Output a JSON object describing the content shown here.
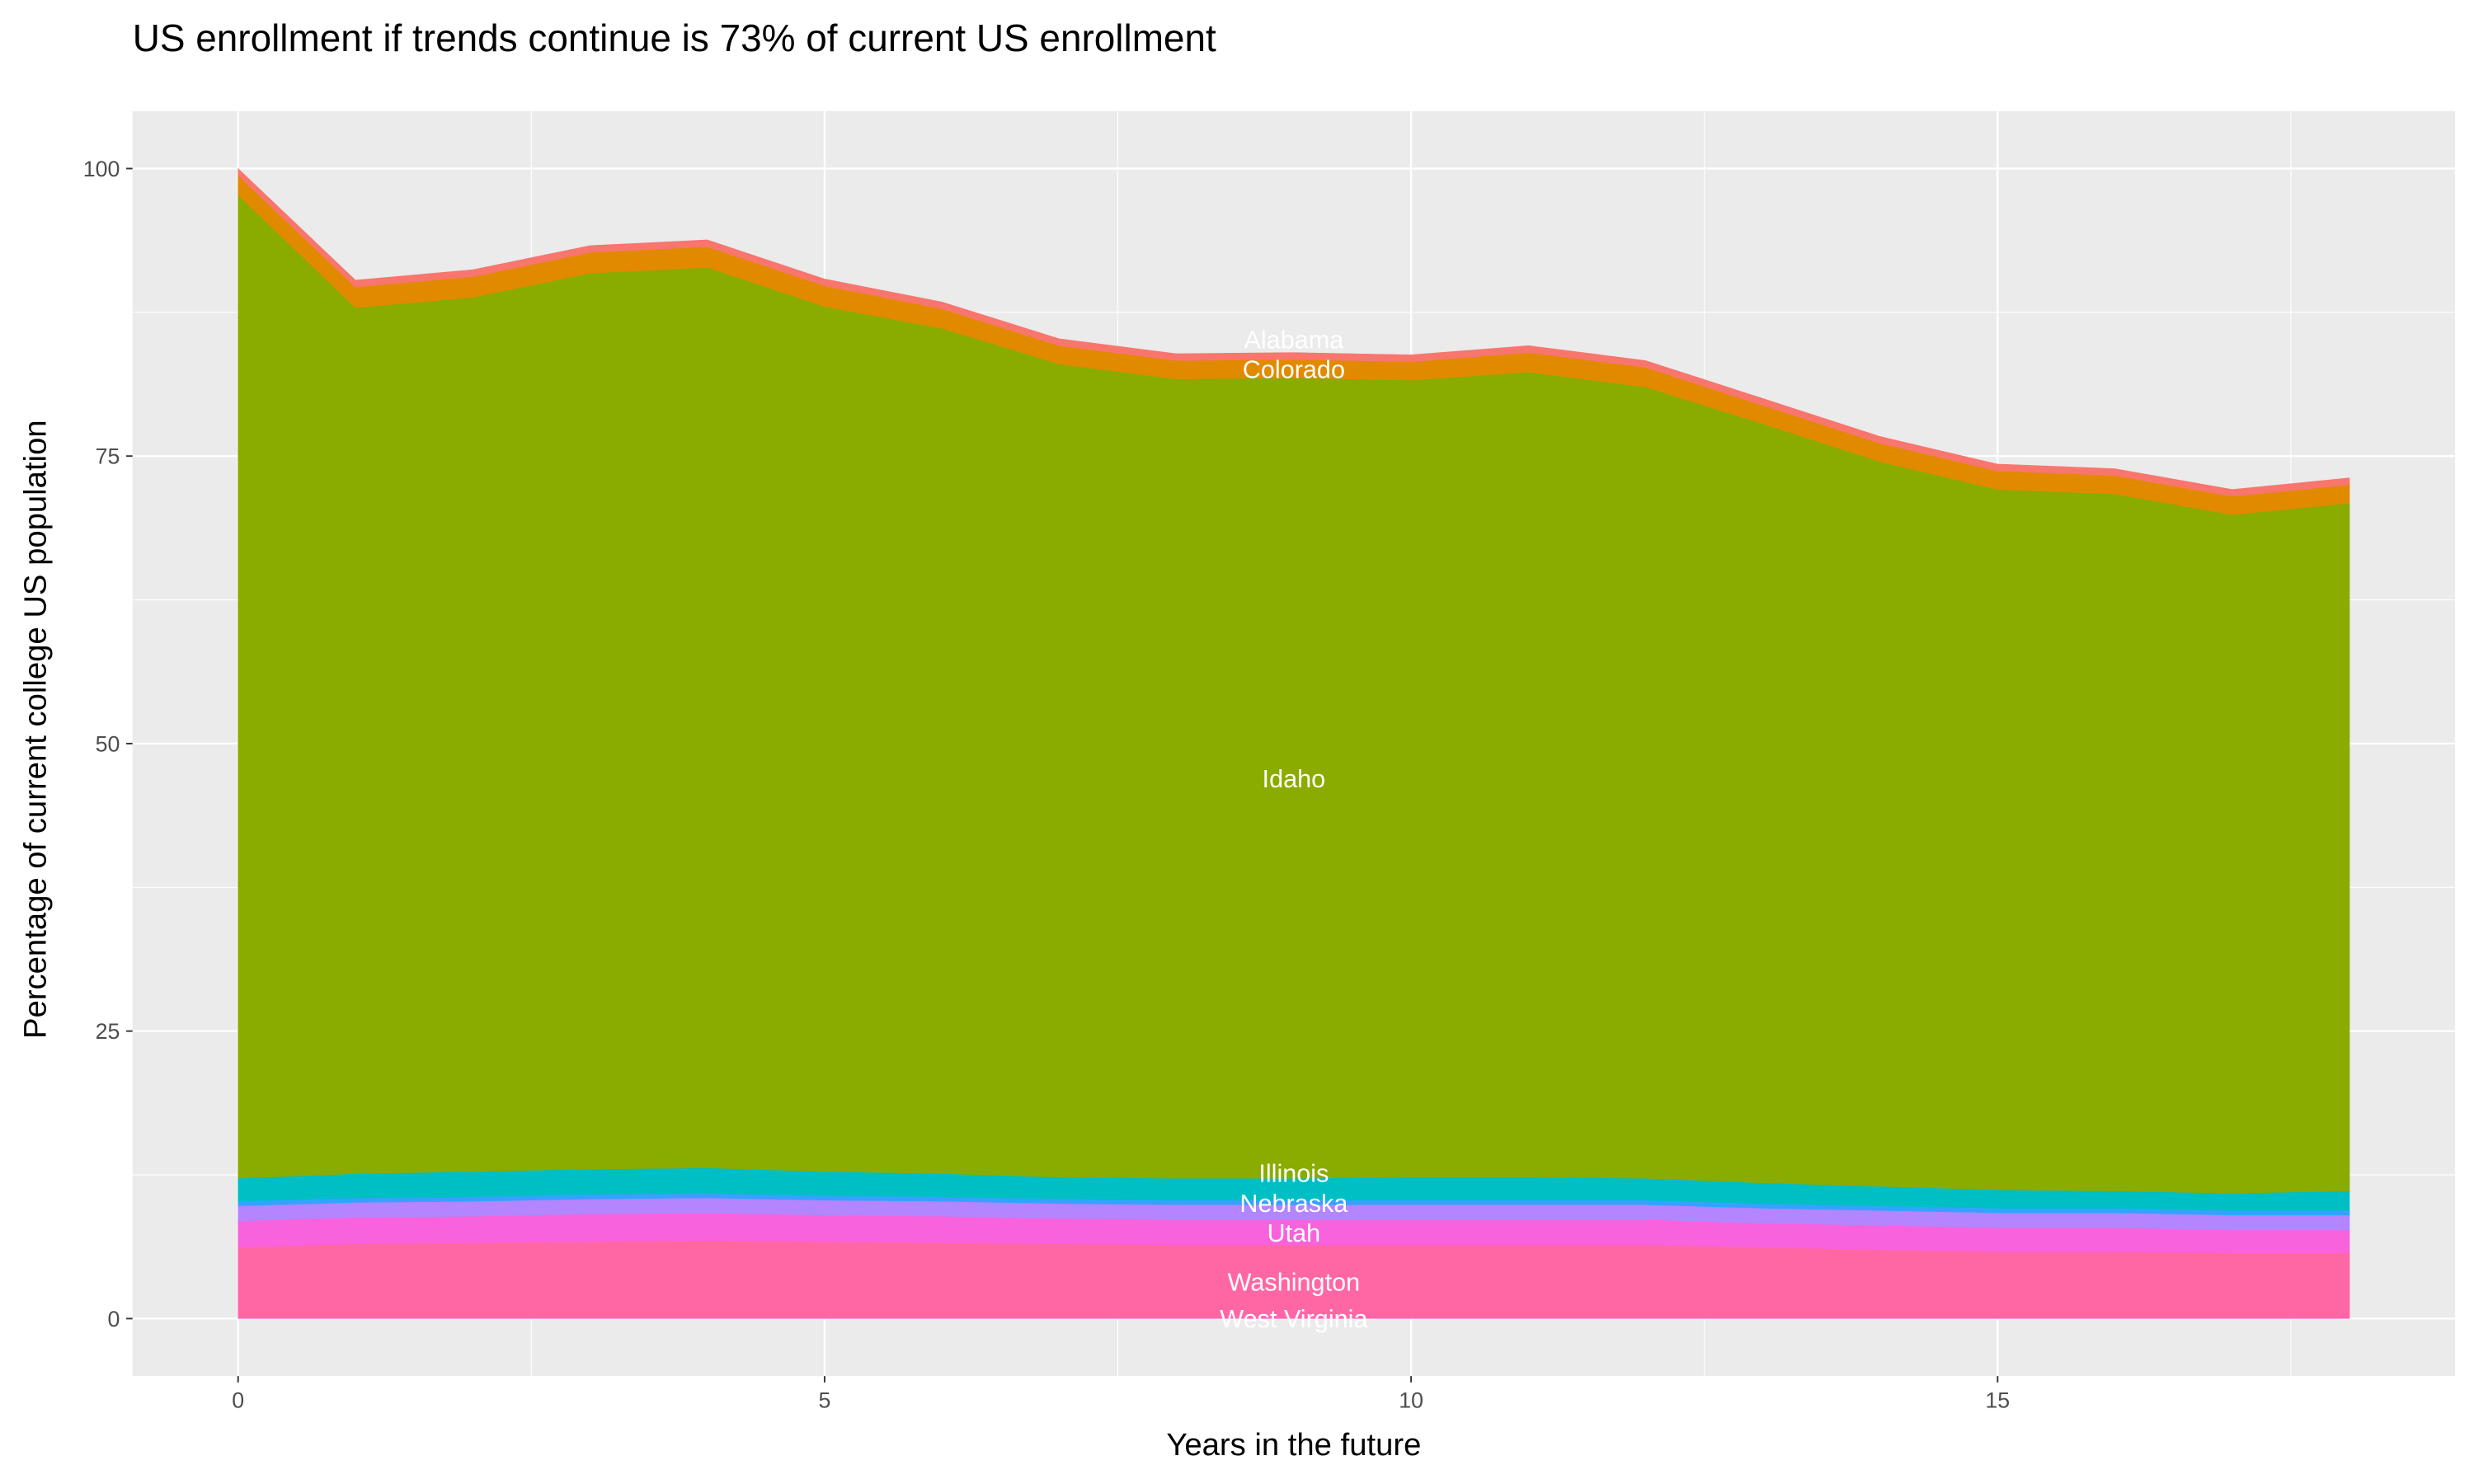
{
  "chart_data": {
    "type": "area",
    "stacked": true,
    "title": "US enrollment if trends continue is 73% of current US enrollment",
    "xlabel": "Years in the future",
    "ylabel": "Percentage of current college US population",
    "xlim": [
      -0.9,
      18.9
    ],
    "ylim": [
      -5,
      105
    ],
    "x_ticks": [
      0,
      5,
      10,
      15
    ],
    "y_ticks": [
      0,
      25,
      50,
      75,
      100
    ],
    "x_tick_labels": [
      "0",
      "5",
      "10",
      "15"
    ],
    "y_tick_labels": [
      "0",
      "25",
      "50",
      "75",
      "100"
    ],
    "grid": true,
    "legend": "none",
    "label_x": 9,
    "x": [
      0,
      1,
      2,
      3,
      4,
      5,
      6,
      7,
      8,
      9,
      10,
      11,
      12,
      13,
      14,
      15,
      16,
      17,
      18
    ],
    "series": [
      {
        "name": "West Virginia",
        "color": "#FF61C3",
        "values": [
          0.1,
          0.1,
          0.1,
          0.1,
          0.1,
          0.1,
          0.1,
          0.1,
          0.1,
          0.1,
          0.1,
          0.1,
          0.1,
          0.1,
          0.1,
          0.1,
          0.1,
          0.1,
          0.1
        ]
      },
      {
        "name": "Washington",
        "color": "#FF67A4",
        "values": [
          6.1,
          6.4,
          6.5,
          6.6,
          6.7,
          6.6,
          6.5,
          6.4,
          6.3,
          6.3,
          6.3,
          6.3,
          6.3,
          6.1,
          5.9,
          5.7,
          5.7,
          5.6,
          5.6
        ]
      },
      {
        "name": "Utah",
        "color": "#F962DD",
        "values": [
          2.3,
          2.3,
          2.3,
          2.4,
          2.4,
          2.3,
          2.3,
          2.2,
          2.2,
          2.2,
          2.2,
          2.2,
          2.2,
          2.1,
          2.1,
          2.1,
          2.1,
          2.0,
          2.0
        ]
      },
      {
        "name": "Nebraska",
        "color": "#B385FF",
        "values": [
          1.3,
          1.3,
          1.3,
          1.3,
          1.3,
          1.3,
          1.3,
          1.3,
          1.3,
          1.3,
          1.3,
          1.3,
          1.3,
          1.3,
          1.3,
          1.3,
          1.3,
          1.3,
          1.3
        ]
      },
      {
        "color": "#35A2FF",
        "values": [
          0.4,
          0.4,
          0.4,
          0.4,
          0.4,
          0.4,
          0.4,
          0.4,
          0.4,
          0.4,
          0.4,
          0.4,
          0.4,
          0.4,
          0.4,
          0.4,
          0.4,
          0.4,
          0.4
        ]
      },
      {
        "name": "Illinois",
        "color": "#00BFC4",
        "values": [
          2.0,
          2.1,
          2.2,
          2.2,
          2.2,
          2.1,
          2.0,
          1.9,
          1.9,
          1.9,
          2.0,
          2.0,
          1.9,
          1.8,
          1.7,
          1.6,
          1.5,
          1.5,
          1.7
        ]
      },
      {
        "name": "Idaho",
        "color": "#8AAB00",
        "values": [
          85.5,
          75.3,
          76.0,
          77.9,
          78.3,
          75.2,
          73.5,
          70.7,
          69.5,
          69.6,
          69.3,
          70.0,
          68.8,
          66.0,
          63.0,
          60.9,
          60.6,
          59.0,
          59.8
        ]
      },
      {
        "name": "Colorado",
        "color": "#E18A00",
        "values": [
          1.7,
          1.8,
          1.8,
          1.8,
          1.8,
          1.8,
          1.7,
          1.6,
          1.6,
          1.6,
          1.6,
          1.7,
          1.7,
          1.6,
          1.6,
          1.6,
          1.6,
          1.6,
          1.6
        ]
      },
      {
        "name": "Alabama",
        "color": "#F8766D",
        "values": [
          0.6,
          0.6,
          0.6,
          0.6,
          0.6,
          0.6,
          0.6,
          0.6,
          0.6,
          0.6,
          0.6,
          0.6,
          0.6,
          0.6,
          0.6,
          0.6,
          0.6,
          0.6,
          0.6
        ]
      }
    ]
  }
}
